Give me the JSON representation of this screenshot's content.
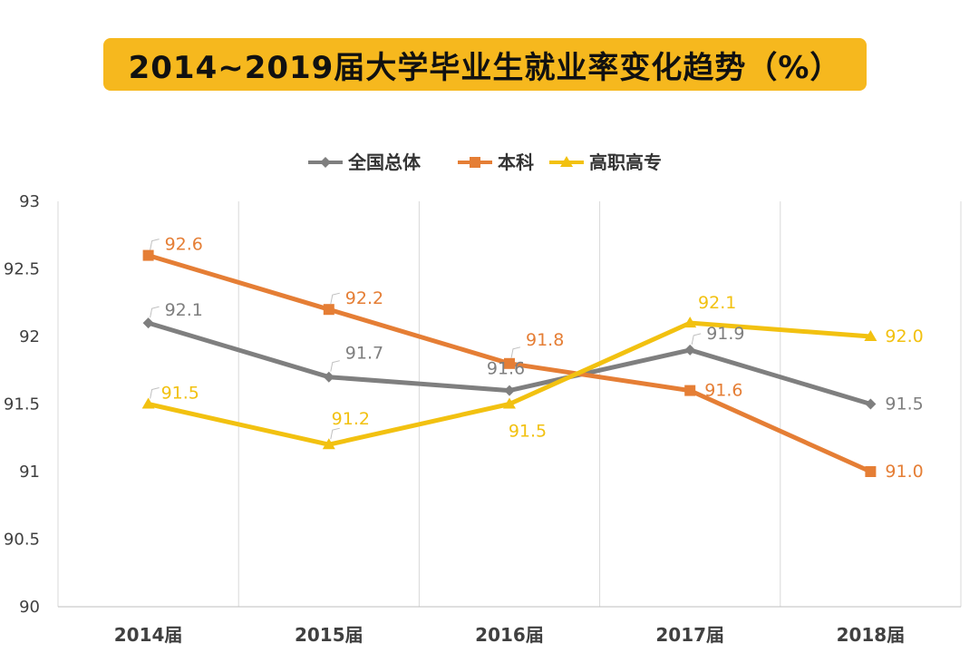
{
  "chart_data": {
    "type": "line",
    "title": "2014~2019届大学毕业生就业率变化趋势（%）",
    "categories": [
      "2014届",
      "2015届",
      "2016届",
      "2017届",
      "2018届"
    ],
    "ylim": [
      90,
      93
    ],
    "yticks": [
      "90",
      "90.5",
      "91",
      "91.5",
      "92",
      "92.5",
      "93"
    ],
    "grid": "vertical",
    "legend_position": "top-center",
    "series": [
      {
        "name": "全国总体",
        "color": "#7F7F7F",
        "marker": "diamond",
        "values": [
          92.1,
          91.7,
          91.6,
          91.9,
          91.5
        ],
        "labels": [
          "92.1",
          "91.7",
          "91.6",
          "91.9",
          "91.5"
        ]
      },
      {
        "name": "本科",
        "color": "#E57E35",
        "marker": "square",
        "values": [
          92.6,
          92.2,
          91.8,
          91.6,
          91.0
        ],
        "labels": [
          "92.6",
          "92.2",
          "91.8",
          "91.6",
          "91.0"
        ]
      },
      {
        "name": "高职高专",
        "color": "#F2C110",
        "marker": "triangle",
        "values": [
          91.5,
          91.2,
          91.5,
          92.1,
          92.0
        ],
        "labels": [
          "91.5",
          "91.2",
          "91.5",
          "92.1",
          "92.0"
        ]
      }
    ]
  }
}
